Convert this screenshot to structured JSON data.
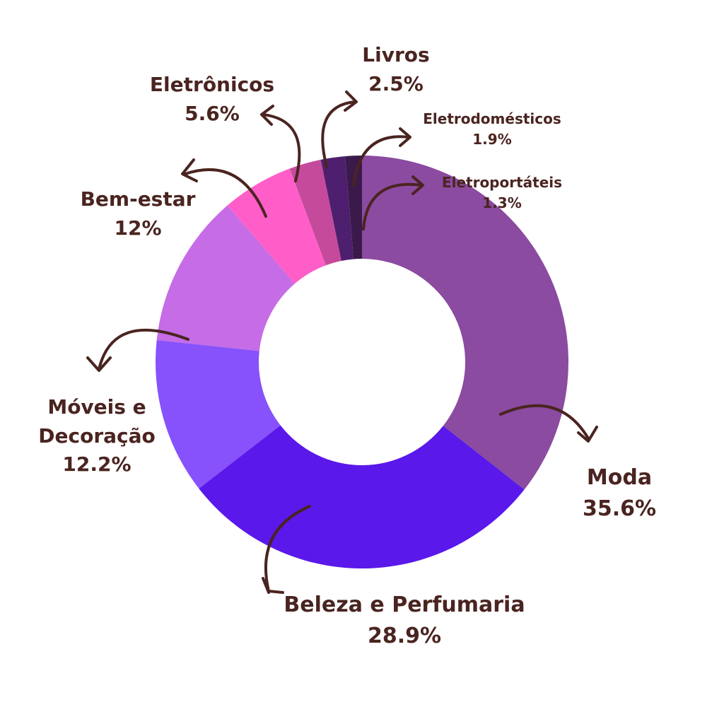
{
  "chart_data": {
    "type": "donut",
    "categories": [
      "Moda",
      "Beleza e Perfumaria",
      "Móveis e Decoração",
      "Bem-estar",
      "Eletrônicos",
      "Livros",
      "Eletrodomésticos",
      "Eletroportáteis"
    ],
    "values": [
      35.6,
      28.9,
      12.2,
      12,
      5.6,
      2.5,
      1.9,
      1.3
    ],
    "value_labels": [
      "35.6%",
      "28.9%",
      "12.2%",
      "12%",
      "5.6%",
      "2.5%",
      "1.9%",
      "1.3%"
    ],
    "colors": [
      "#8a4ba0",
      "#5b18ea",
      "#8752fb",
      "#c56ce6",
      "#ff5ec8",
      "#c64a9c",
      "#4e1f6e",
      "#3a1a4a"
    ]
  }
}
